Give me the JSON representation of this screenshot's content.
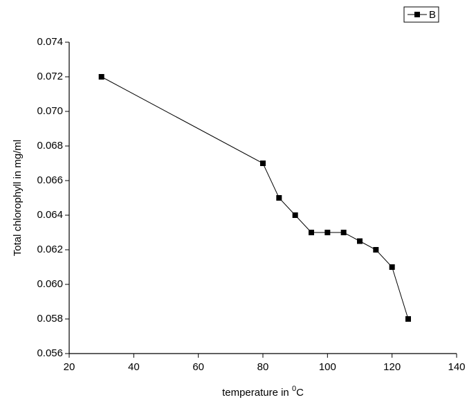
{
  "chart_data": {
    "type": "line",
    "x_label": {
      "text": "temperature in ",
      "superscript": "0",
      "unit": "C"
    },
    "y_label": "Total chlorophyll in mg/ml",
    "x": [
      30,
      80,
      85,
      90,
      95,
      100,
      105,
      110,
      115,
      120,
      125
    ],
    "series": [
      {
        "name": "B",
        "color": "#000000",
        "values": [
          0.072,
          0.067,
          0.065,
          0.064,
          0.063,
          0.063,
          0.063,
          0.0625,
          0.062,
          0.061,
          0.058
        ]
      }
    ],
    "xlim": [
      20,
      140
    ],
    "xticks": [
      20,
      40,
      60,
      80,
      100,
      120,
      140
    ],
    "ylim": [
      0.056,
      0.074
    ],
    "yticks": [
      0.056,
      0.058,
      {
        "value": 0.06,
        "label": "0.060"
      },
      0.062,
      0.064,
      0.066,
      0.068,
      {
        "value": 0.07,
        "label": "0.070"
      },
      0.072,
      0.074
    ],
    "legend": "top-right",
    "grid": false
  }
}
